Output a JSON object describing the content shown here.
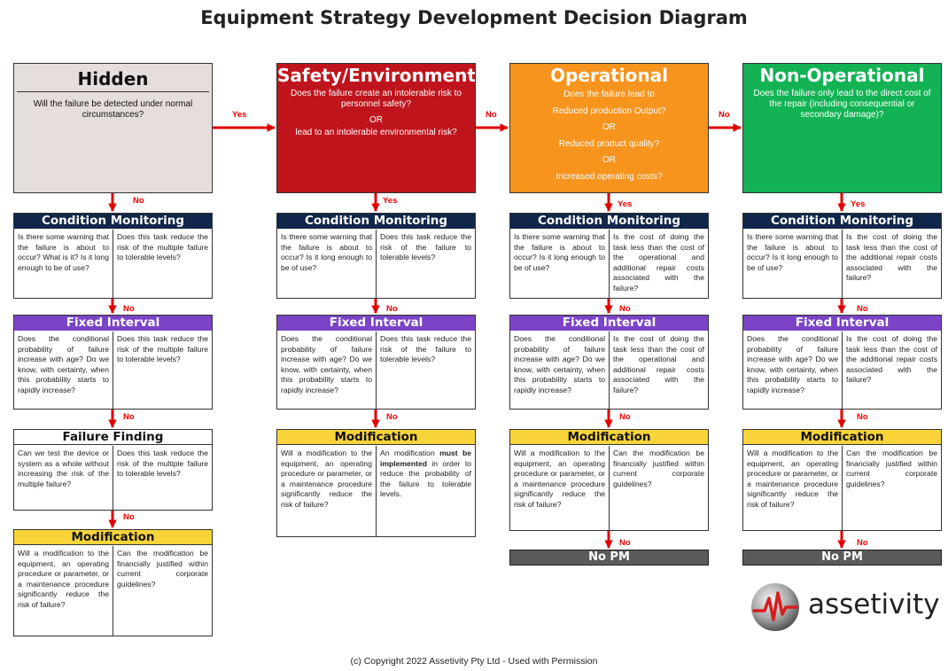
{
  "title": "Equipment Strategy Development Decision Diagram",
  "hidden": {
    "title": "Hidden",
    "question": "Will the failure be detected under normal circumstances?",
    "cm_left": "Is there some warning that the failure is about to occur? What is it? Is it long enough to be of use?",
    "cm_right": "Does this task reduce the risk of the multiple failure to tolerable levels?",
    "fi_left": "Does the conditional probability of failure increase with age? Do we know, with certainty, when this probability starts to rapidly increase?",
    "fi_right": "Does this task reduce the risk of the multiple failure to tolerable levels?",
    "ff_title": "Failure Finding",
    "ff_left": "Can we test the device or system as a whole without increasing the risk of the multiple failure?",
    "ff_right": "Does this task reduce the risk of the multiple failure to tolerable levels?",
    "mod_left": "Will a modification to the equipment, an operating procedure or parameter, or a maintenance procedure significantly reduce the risk of failure?",
    "mod_right": "Can the modification be financially justified within current corporate guidelines?"
  },
  "safety": {
    "title": "Safety/Environment",
    "q1": "Does the failure create an intolerable risk to personnel safety?",
    "or": "OR",
    "q2": "lead to an intolerable environmental risk?",
    "cm_left": "Is there some warning that the failure is about to occur? Is it long enough to be of use?",
    "cm_right": "Does this task reduce the risk of the failure to tolerable levels?",
    "fi_left": "Does the conditional probability of failure increase with age? Do we know, with certainty, when this probability starts to rapidly increase?",
    "fi_right": "Does this task reduce the risk of the failure to tolerable levels?",
    "mod_left": "Will a modification to the equipment, an operating procedure or parameter, or a maintenance procedure significantly reduce the risk of failure?",
    "mod_right_a": "An modification ",
    "mod_right_b": "must be implemented",
    "mod_right_c": " in order to reduce the probability of the failure to tolerable levels."
  },
  "operational": {
    "title": "Operational",
    "q1": "Does the failure lead to",
    "q2": "Reduced production Output?",
    "q3": "Reduced product quality?",
    "q4": "Increased operating costs?",
    "or": "OR",
    "cm_left": "Is there some warning that the failure is about to occur? Is it long enough to be of use?",
    "cm_right": "Is the cost of doing the task less than the cost of the operational and additional repair costs associated with the failure?",
    "fi_left": "Does the conditional probability of failure increase with age? Do we know, with certainty, when this probability starts to rapidly increase?",
    "fi_right": "Is the cost of doing the task less than the cost of the operational and additional repair costs associated with the failure?",
    "mod_left": "Will a modification to the equipment, an operating procedure or parameter, or a maintenance procedure significantly reduce the risk of failure?",
    "mod_right": "Can the modification be financially justified within current corporate guidelines?"
  },
  "nonoperational": {
    "title": "Non-Operational",
    "question": "Does the failure only lead to the direct cost of the repair (including consequential or secondary damage)?",
    "cm_left": "Is there some warning that the failure is about to occur? Is it long enough to be of use?",
    "cm_right": "Is the cost of doing the task less than the cost of the additional repair costs associated with the failure?",
    "fi_left": "Does the conditional probability of failure increase with age? Do we know, with certainty, when this probability starts to rapidly increase?",
    "fi_right": "Is the cost of doing the task less than the cost of the additional repair costs associated with the failure?",
    "mod_left": "Will a modification to the equipment, an operating procedure or parameter, or a maintenance procedure significantly reduce the risk of failure?",
    "mod_right": "Can the modification be financially justified within current corporate guidelines?"
  },
  "stages": {
    "cm": "Condition Monitoring",
    "fi": "Fixed Interval",
    "mod": "Modification",
    "nopm": "No PM"
  },
  "labels": {
    "yes": "Yes",
    "no": "No"
  },
  "logo": {
    "text": "assetivity"
  },
  "footer": "(c) Copyright 2022 Assetivity Pty Ltd - Used with Permission",
  "colors": {
    "hidden": "#e5dedc",
    "safety": "#c0141c",
    "operational": "#f7941e",
    "nonoperational": "#13b355",
    "condition_monitoring": "#10264a",
    "fixed_interval": "#7b44c7",
    "modification": "#f8d43a",
    "no_pm": "#5a5a5a",
    "arrow": "#e00000"
  }
}
